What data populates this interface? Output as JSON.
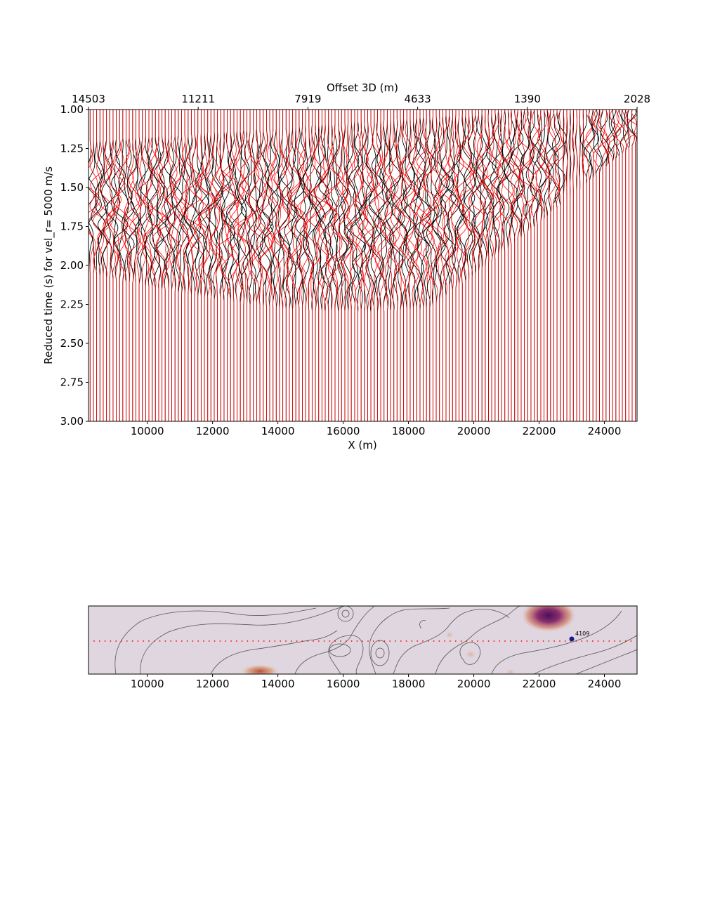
{
  "chart_data": [
    {
      "type": "line",
      "title": "",
      "xlabel": "X (m)",
      "ylabel": "Reduced time (s) for vel_r= 5000 m/s",
      "top_xlabel": "Offset 3D (m)",
      "xlim": [
        8200,
        25000
      ],
      "ylim": [
        3.0,
        1.0
      ],
      "x_ticks": [
        10000,
        12000,
        14000,
        16000,
        18000,
        20000,
        22000,
        24000
      ],
      "y_ticks": [
        "1.00",
        "1.25",
        "1.50",
        "1.75",
        "2.00",
        "2.25",
        "2.50",
        "2.75",
        "3.00"
      ],
      "top_tick_labels": [
        "14503",
        "11211",
        "7919",
        "4633",
        "1390",
        "2028"
      ],
      "trace_spacing": 100,
      "series": [
        {
          "name": "",
          "color": "#000000"
        },
        {
          "name": "",
          "color": "#ff0000"
        }
      ],
      "grid": false
    },
    {
      "type": "heatmap",
      "xlim": [
        8200,
        25000
      ],
      "x_ticks": [
        10000,
        12000,
        14000,
        16000,
        18000,
        20000,
        22000,
        24000
      ],
      "background_color": "#e0d6df",
      "contour_color": "#555555",
      "receiver_line_color": "#ff0000",
      "blobs": [
        {
          "x": 22150,
          "level": 1.0
        },
        {
          "x": 13300,
          "level": 0.55
        },
        {
          "x": 19900,
          "level": 0.25
        },
        {
          "x": 19200,
          "level": 0.2
        },
        {
          "x": 21100,
          "level": 0.2
        }
      ],
      "marker": {
        "x": 23000,
        "label": "4109",
        "color": "#1a1a8c"
      }
    }
  ]
}
